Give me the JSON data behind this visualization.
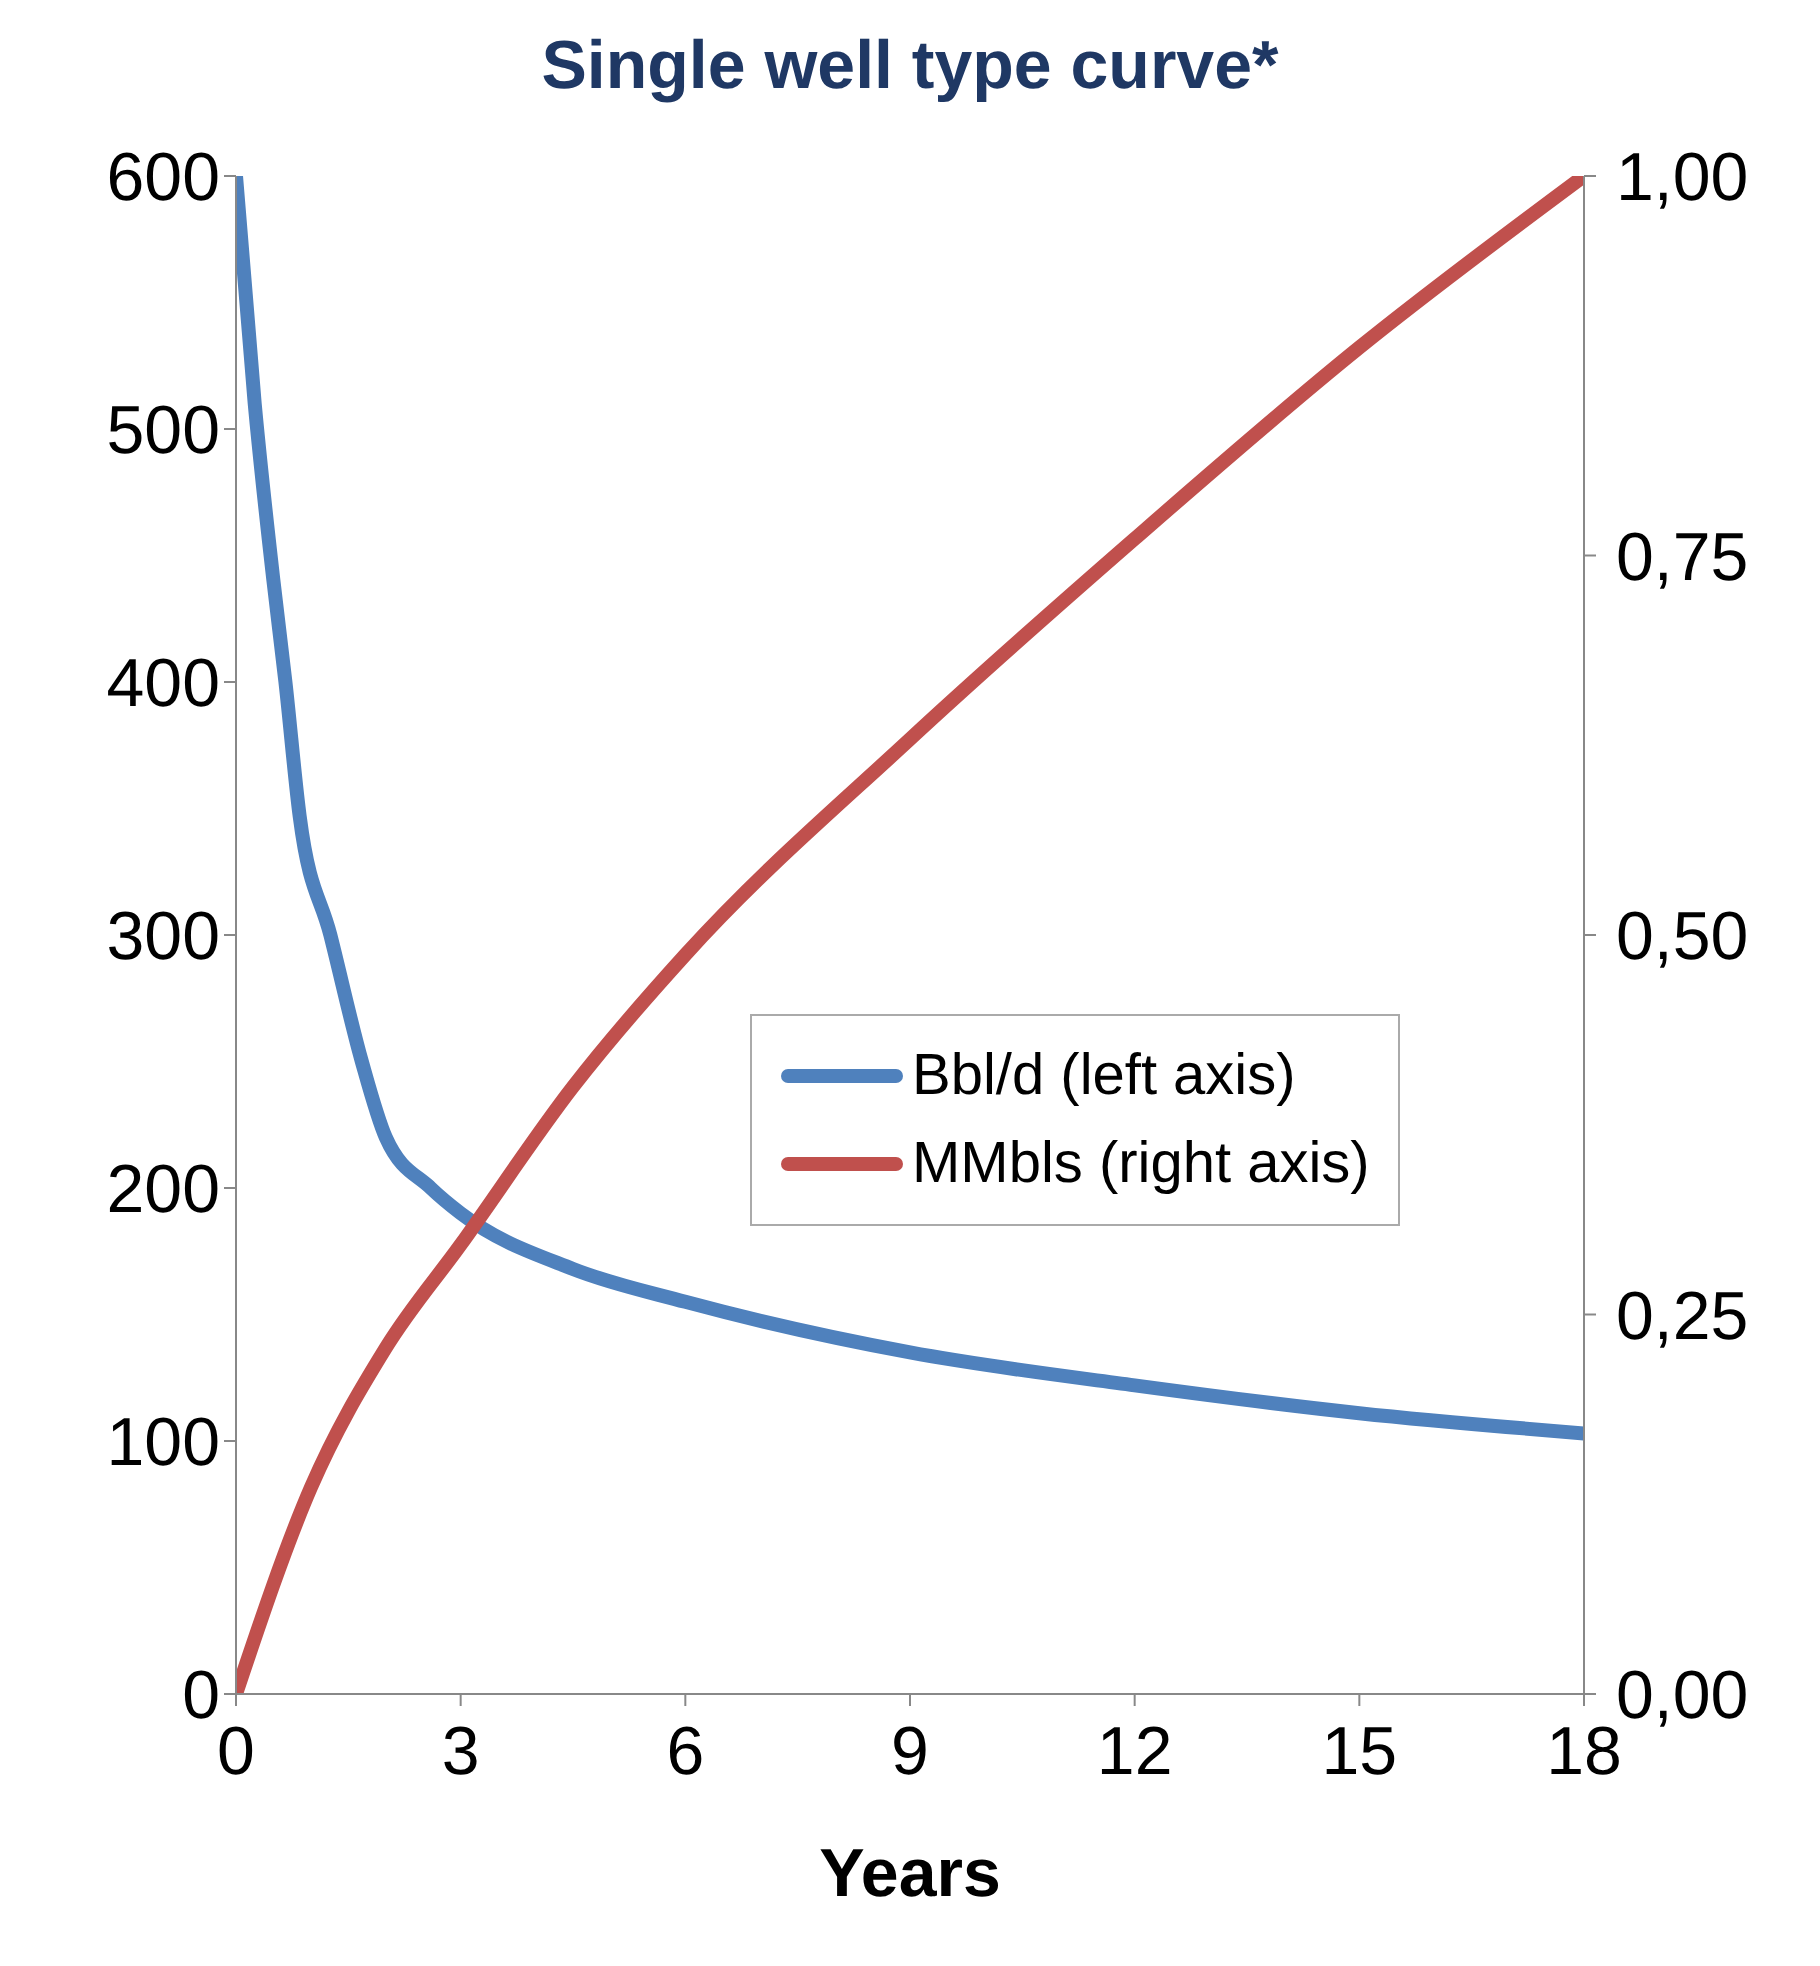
{
  "chart_data": {
    "type": "line",
    "title": "Single well type curve*",
    "xlabel": "Years",
    "xlim": [
      0,
      18
    ],
    "xticks": [
      0,
      3,
      6,
      9,
      12,
      15,
      18
    ],
    "ylim": [
      0,
      600
    ],
    "yticks": [
      0,
      100,
      200,
      300,
      400,
      500,
      600
    ],
    "y2lim": [
      0,
      1
    ],
    "y2ticks": [
      {
        "value": 0,
        "label": "0,00"
      },
      {
        "value": 0.25,
        "label": "0,25"
      },
      {
        "value": 0.5,
        "label": "0,50"
      },
      {
        "value": 0.75,
        "label": "0,75"
      },
      {
        "value": 1,
        "label": "1,00"
      }
    ],
    "grid": false,
    "legend": "right",
    "marker": "none",
    "line_style": "solid",
    "series": [
      {
        "name": "Bbl/d (left axis)",
        "color": "#4f81bd",
        "x": [
          0,
          0.25,
          0.5,
          0.66,
          0.85,
          1.26,
          1.68,
          2,
          2.6,
          3,
          4.5,
          6,
          9,
          12,
          15,
          18
        ],
        "values": [
          600,
          510,
          440,
          400,
          347,
          300,
          250,
          220,
          200,
          190,
          168,
          155,
          135,
          122,
          111,
          103
        ]
      },
      {
        "name": "MMbls (right axis)",
        "color": "#c0504d",
        "axis": "y2",
        "x": [
          0,
          1,
          2,
          3,
          4.5,
          6,
          9,
          12,
          15,
          18
        ],
        "values": [
          0,
          0.136,
          0.228,
          0.296,
          0.4,
          0.487,
          0.629,
          0.761,
          0.887,
          1
        ]
      }
    ]
  }
}
